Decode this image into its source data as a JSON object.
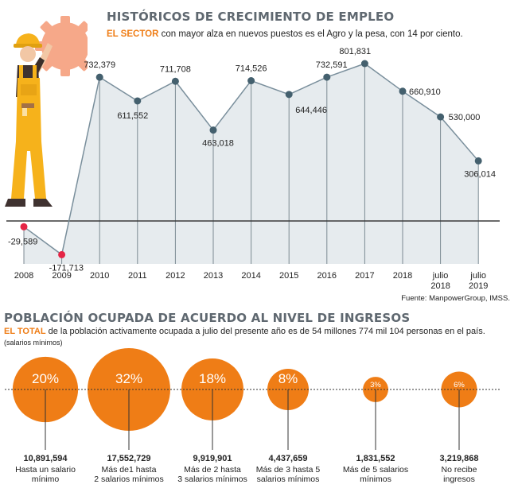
{
  "chart1": {
    "title": "HISTÓRICOS DE CRECIMIENTO DE EMPLEO",
    "subtitle_accent": "EL SECTOR",
    "subtitle_rest": " con mayor alza en nuevos puestos es el Agro y la pesa, con 14 por ciento.",
    "source": "Fuente: ManpowerGroup, IMSS."
  },
  "chart2": {
    "title": "POBLACIÓN OCUPADA DE ACUERDO AL NIVEL DE INGRESOS",
    "subtitle_accent": "EL TOTAL",
    "subtitle_rest": " de la población activamente ocupada a julio del presente año es de 54 millones 774 mil 104 personas en el país.",
    "note": "(salarios mínimos)"
  },
  "colors": {
    "title": "#5f6870",
    "accent": "#ef7d16",
    "area_fill": "#e6ebee",
    "line": "#7a8f9c",
    "point": "#44606e",
    "negative": "#e52545",
    "bubble": "#ef7d16"
  },
  "chart_data": [
    {
      "type": "area",
      "categories": [
        "2008",
        "2009",
        "2010",
        "2011",
        "2012",
        "2013",
        "2014",
        "2015",
        "2016",
        "2017",
        "2018",
        "julio 2018",
        "julio 2019"
      ],
      "values": [
        -29589,
        -171713,
        732379,
        611552,
        711708,
        463018,
        714526,
        644446,
        732591,
        801831,
        660910,
        530000,
        306014
      ],
      "value_labels": [
        "-29,589",
        "-171,713",
        "732,379",
        "611,552",
        "711,708",
        "463,018",
        "714,526",
        "644,446",
        "732,591",
        "801,831",
        "660,910",
        "530,000",
        "306,014"
      ],
      "grid": false,
      "legend": "none"
    },
    {
      "type": "bubble",
      "series": [
        {
          "pct": 20,
          "pct_label": "20%",
          "value": "10,891,594",
          "label": "Hasta un salario mínimo"
        },
        {
          "pct": 32,
          "pct_label": "32%",
          "value": "17,552,729",
          "label": "Más de1 hasta 2 salarios mínimos"
        },
        {
          "pct": 18,
          "pct_label": "18%",
          "value": "9,919,901",
          "label": "Más de 2 hasta 3 salarios mínimos"
        },
        {
          "pct": 8,
          "pct_label": "8%",
          "value": "4,437,659",
          "label": "Más de 3 hasta 5 salarios mínimos"
        },
        {
          "pct": 3,
          "pct_label": "3%",
          "value": "1,831,552",
          "label": "Más de 5 salarios mínimos"
        },
        {
          "pct": 6,
          "pct_label": "6%",
          "value": "3,219,868",
          "label": "No recibe ingresos"
        }
      ]
    }
  ]
}
